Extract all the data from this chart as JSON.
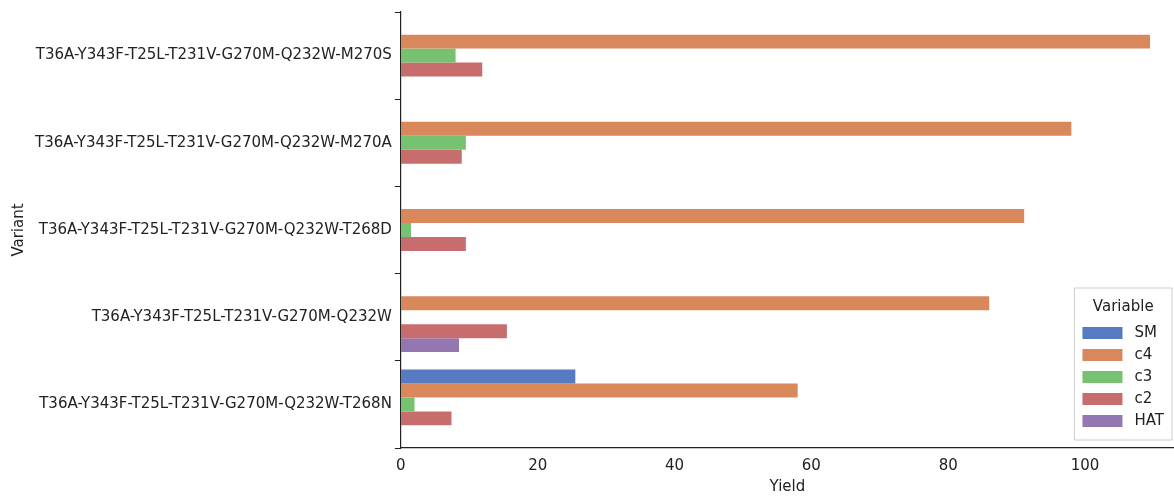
{
  "chart_data": {
    "type": "bar",
    "orientation": "horizontal",
    "xlabel": "Yield",
    "ylabel": "Variant",
    "legend_title": "Variable",
    "legend": "bottom right",
    "grid": false,
    "categories": [
      "T36A-Y343F-T25L-T231V-G270M-Q232W-M270S",
      "T36A-Y343F-T25L-T231V-G270M-Q232W-M270A",
      "T36A-Y343F-T25L-T231V-G270M-Q232W-T268D",
      "T36A-Y343F-T25L-T231V-G270M-Q232W",
      "T36A-Y343F-T25L-T231V-G270M-Q232W-T268N"
    ],
    "xlim": [
      0,
      113
    ],
    "xticks": [
      0,
      20,
      40,
      60,
      80,
      100
    ],
    "series": [
      {
        "name": "SM",
        "color": "#567bc0",
        "values": [
          null,
          null,
          null,
          null,
          25.5
        ]
      },
      {
        "name": "c4",
        "color": "#d9885c",
        "values": [
          109.5,
          98.0,
          91.1,
          86.0,
          58.0
        ]
      },
      {
        "name": "c3",
        "color": "#76c270",
        "values": [
          8.0,
          9.5,
          1.5,
          null,
          2.0
        ]
      },
      {
        "name": "c2",
        "color": "#c86d6d",
        "values": [
          11.9,
          8.9,
          9.5,
          15.5,
          7.4
        ]
      },
      {
        "name": "HAT",
        "color": "#9476b0",
        "values": [
          null,
          null,
          null,
          8.5,
          null
        ]
      }
    ]
  }
}
